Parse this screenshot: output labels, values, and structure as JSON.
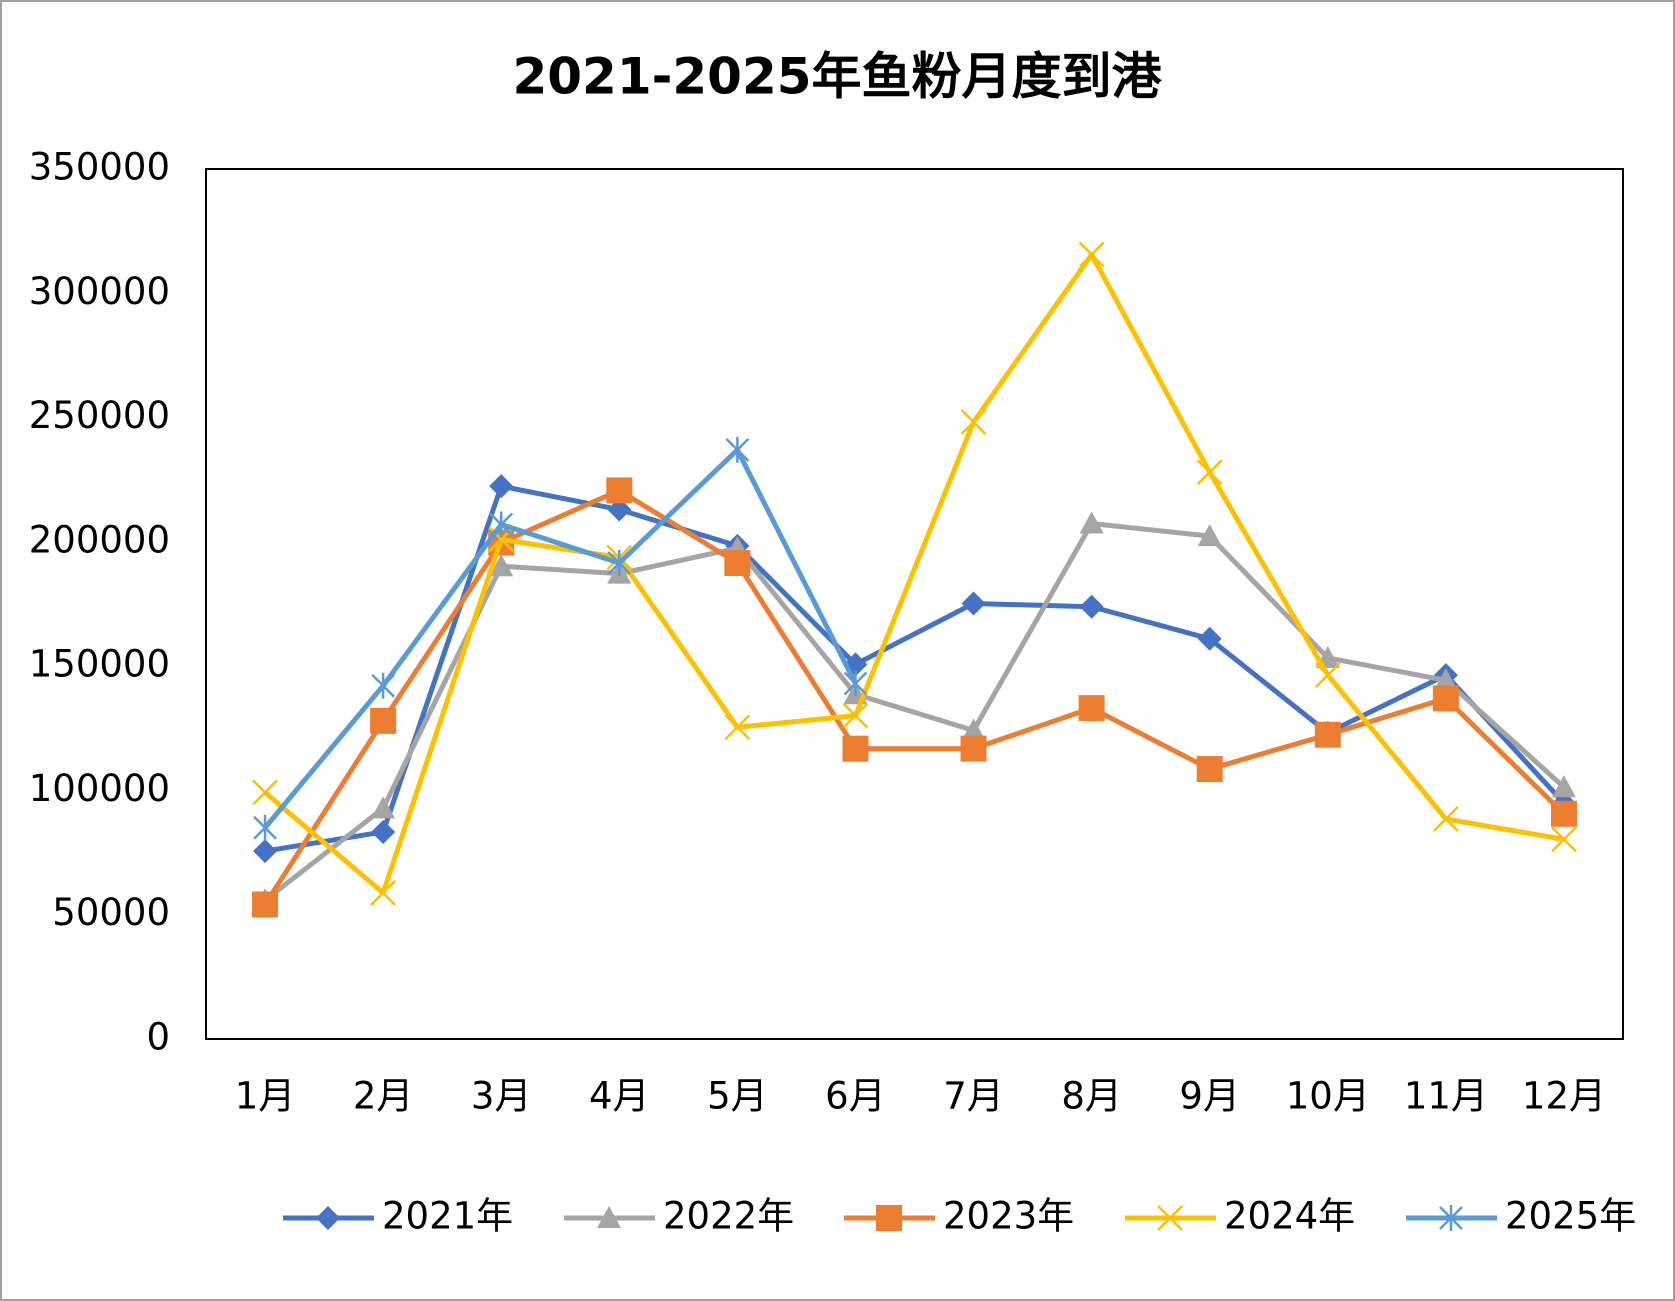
{
  "chart_data": {
    "type": "line",
    "title": "2021-2025年鱼粉月度到港",
    "categories": [
      "1月",
      "2月",
      "3月",
      "4月",
      "5月",
      "6月",
      "7月",
      "8月",
      "9月",
      "10月",
      "11月",
      "12月"
    ],
    "series": [
      {
        "name": "2021年",
        "color": "#4472c4",
        "marker": "diamond",
        "values": [
          75600,
          83300,
          222400,
          213000,
          198400,
          150700,
          175200,
          173900,
          161000,
          123200,
          146400,
          94900
        ]
      },
      {
        "name": "2022年",
        "color": "#a5a5a5",
        "marker": "triangle",
        "values": [
          55800,
          92800,
          190200,
          187200,
          197500,
          138700,
          124100,
          207400,
          202300,
          153300,
          144300,
          101300
        ]
      },
      {
        "name": "2023年",
        "color": "#ed7d31",
        "marker": "square",
        "values": [
          54100,
          128000,
          199700,
          220700,
          191500,
          116800,
          116800,
          133100,
          108600,
          122400,
          137000,
          90600
        ]
      },
      {
        "name": "2024年",
        "color": "#ffc000",
        "marker": "x",
        "values": [
          99200,
          58800,
          201000,
          193700,
          125400,
          130100,
          248200,
          315600,
          228000,
          146400,
          88500,
          80300
        ]
      },
      {
        "name": "2025年",
        "color": "#5b9bd5",
        "marker": "star",
        "values": [
          85000,
          142100,
          207000,
          191500,
          237000,
          143000,
          null,
          null,
          null,
          null,
          null,
          null
        ]
      }
    ],
    "ylim": [
      0,
      350000
    ],
    "yticks": [
      0,
      50000,
      100000,
      150000,
      200000,
      250000,
      300000,
      350000
    ],
    "grid": false,
    "legend": "bottom"
  }
}
